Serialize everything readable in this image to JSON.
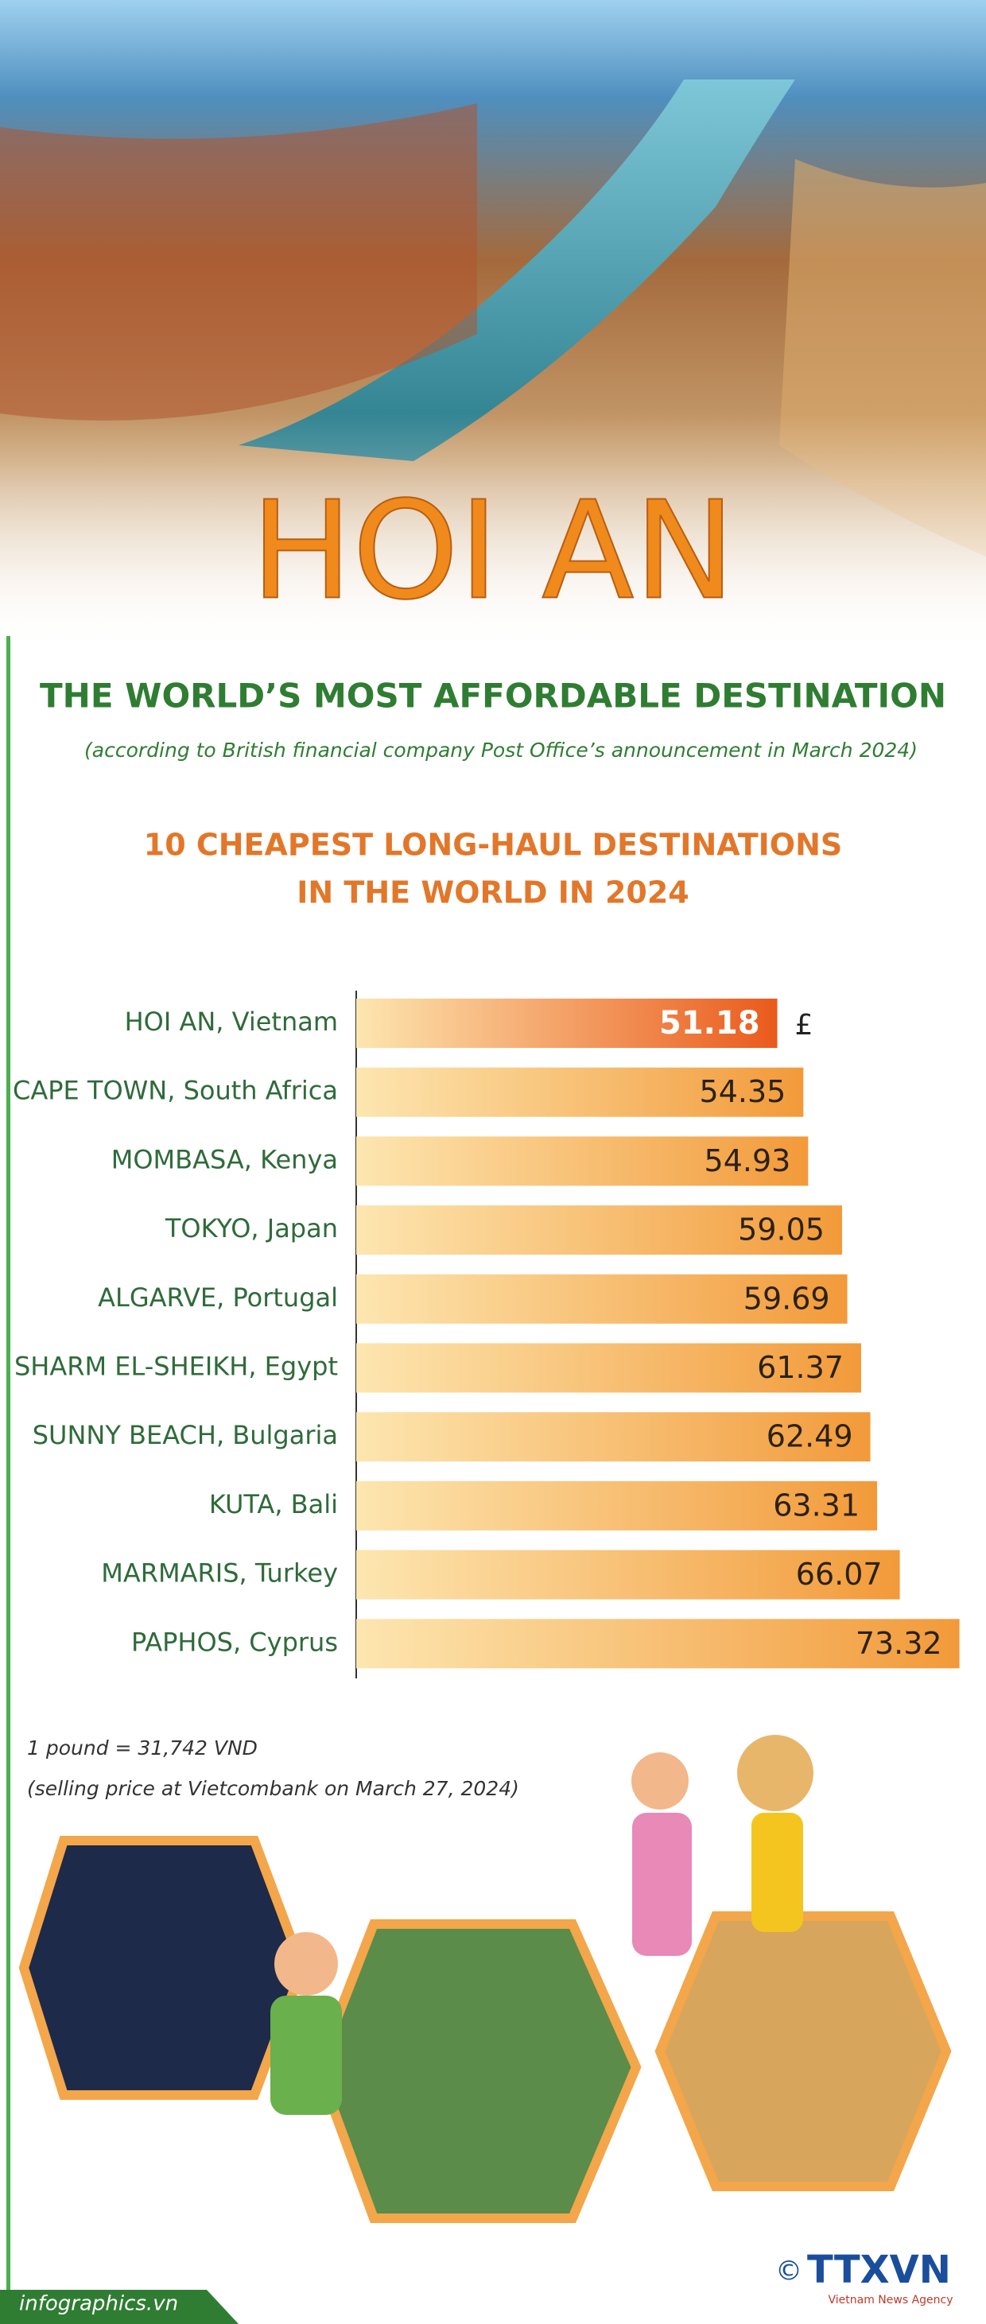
{
  "header": {
    "title": "HOI AN"
  },
  "chart_data": {
    "type": "bar",
    "orientation": "horizontal",
    "title": "THE WORLD’S MOST AFFORDABLE DESTINATION",
    "note": "(according to British financial company Post Office’s announcement in March 2024)",
    "subtitle": [
      "10 CHEAPEST LONG-HAUL DESTINATIONS",
      "IN THE WORLD IN 2024"
    ],
    "categories": [
      "HOI AN, Vietnam",
      "CAPE TOWN, South Africa",
      "MOMBASA, Kenya",
      "TOKYO, Japan",
      "ALGARVE, Portugal",
      "SHARM EL-SHEIKH, Egypt",
      "SUNNY BEACH, Bulgaria",
      "KUTA, Bali",
      "MARMARIS, Turkey",
      "PAPHOS, Cyprus"
    ],
    "values": [
      51.18,
      54.35,
      54.93,
      59.05,
      59.69,
      61.37,
      62.49,
      63.31,
      66.07,
      73.32
    ],
    "colors": [
      "#ea5a1c",
      "#f29a3a",
      "#f29a3a",
      "#f29a3a",
      "#f29a3a",
      "#f29a3a",
      "#f29a3a",
      "#f29a3a",
      "#f29a3a",
      "#f29a3a"
    ],
    "label_colors": [
      "#ffffff",
      "#2b2210",
      "#2b2210",
      "#2b2210",
      "#2b2210",
      "#2b2210",
      "#2b2210",
      "#2b2210",
      "#2b2210",
      "#2b2210"
    ],
    "unit": "£",
    "xlim": [
      0,
      75
    ]
  },
  "footnote": [
    "1 pound = 31,742 VND",
    "(selling price at Vietcombank on March 27, 2024)"
  ],
  "footer": {
    "site": "infographics.vn",
    "logo": "TTXVN",
    "logo_sub": "Vietnam News Agency",
    "copyright": "©"
  }
}
